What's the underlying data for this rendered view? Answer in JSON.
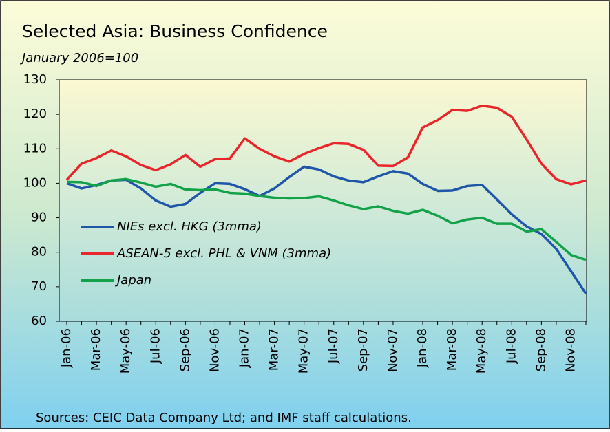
{
  "chart_data": {
    "type": "line",
    "title": "Selected Asia: Business Confidence",
    "subtitle": "January 2006=100",
    "source": "Sources: CEIC Data Company Ltd; and IMF staff calculations.",
    "categories": [
      "Jan-06",
      null,
      "Mar-06",
      null,
      "May-06",
      null,
      "Jul-06",
      null,
      "Sep-06",
      null,
      "Nov-06",
      null,
      "Jan-07",
      null,
      "Mar-07",
      null,
      "May-07",
      null,
      "Jul-07",
      null,
      "Sep-07",
      null,
      "Nov-07",
      null,
      "Jan-08",
      null,
      "Mar-08",
      null,
      "May-08",
      null,
      "Jul-08",
      null,
      "Sep-08",
      null,
      "Nov-08",
      null
    ],
    "series": [
      {
        "name": "NIEs excl. HKG (3mma)",
        "color": "#1f56a8",
        "values": [
          100,
          98.5,
          99.5,
          100.8,
          101,
          98.5,
          95,
          93.2,
          94,
          97.2,
          100,
          99.8,
          98.3,
          96.3,
          98.5,
          101.8,
          104.8,
          104,
          102,
          100.8,
          100.3,
          102,
          103.5,
          102.8,
          99.8,
          97.8,
          97.9,
          99.2,
          99.5,
          95.3,
          91,
          87.5,
          85.3,
          81,
          74.5,
          68
        ]
      },
      {
        "name": "ASEAN-5 excl. PHL & VNM (3mma)",
        "color": "#e8262b",
        "values": [
          101,
          105.7,
          107.3,
          109.5,
          107.8,
          105.3,
          103.8,
          105.5,
          108.2,
          104.8,
          107,
          107.2,
          113,
          110,
          107.8,
          106.3,
          108.5,
          110.2,
          111.6,
          111.4,
          109.7,
          105.1,
          105,
          107.5,
          116.2,
          118.3,
          121.3,
          121,
          122.5,
          121.9,
          119.3,
          112.7,
          105.7,
          101.2,
          99.7,
          100.8
        ]
      },
      {
        "name": "Japan",
        "color": "#13a24a",
        "values": [
          100.4,
          100.3,
          99.2,
          100.8,
          101.2,
          100.2,
          99,
          99.8,
          98.2,
          98,
          98.2,
          97.2,
          97,
          96.3,
          95.8,
          95.6,
          95.7,
          96.2,
          95,
          93.6,
          92.5,
          93.3,
          92,
          91.2,
          92.3,
          90.6,
          88.4,
          89.5,
          90,
          88.3,
          88.3,
          86,
          86.7,
          83,
          79.2,
          77.8
        ]
      }
    ],
    "ylim": [
      60,
      130
    ],
    "yticks": [
      60,
      70,
      80,
      90,
      100,
      110,
      120,
      130
    ],
    "legend": "lower left"
  }
}
